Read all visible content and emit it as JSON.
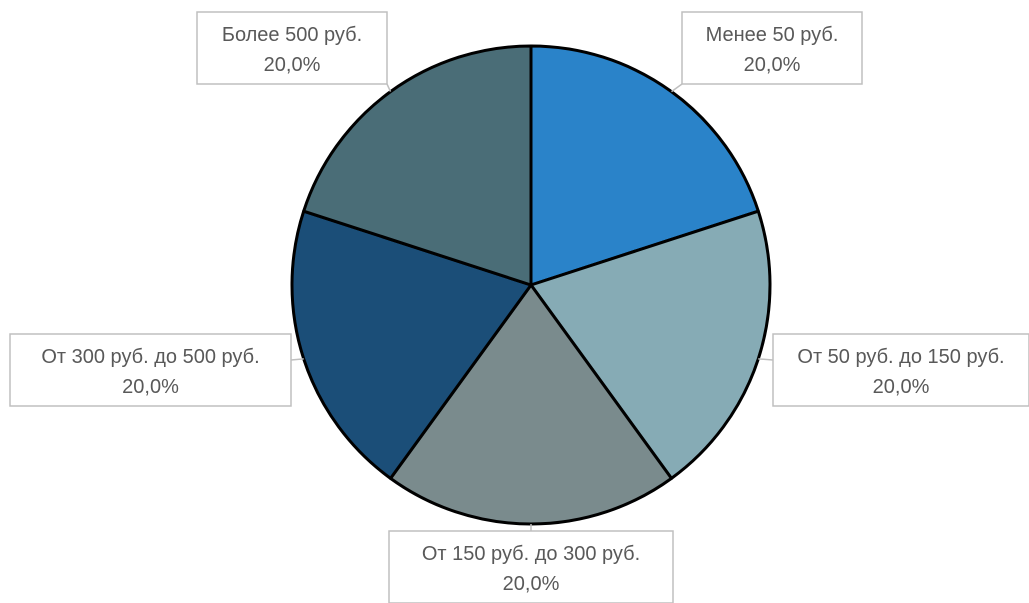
{
  "chart_data": {
    "type": "pie",
    "title": "",
    "slices": [
      {
        "label": "Менее 50 руб.",
        "value": 20.0,
        "value_label": "20,0%",
        "color": "#2a83c9"
      },
      {
        "label": "От 50 руб. до 150 руб.",
        "value": 20.0,
        "value_label": "20,0%",
        "color": "#86abb5"
      },
      {
        "label": "От 150 руб. до 300 руб.",
        "value": 20.0,
        "value_label": "20,0%",
        "color": "#7a8b8d"
      },
      {
        "label": "От 300 руб. до 500 руб.",
        "value": 20.0,
        "value_label": "20,0%",
        "color": "#1b4e78"
      },
      {
        "label": "Более 500 руб.",
        "value": 20.0,
        "value_label": "20,0%",
        "color": "#4a6d77"
      }
    ],
    "start_angle_deg": 0,
    "direction": "clockwise",
    "slice_border_color": "#000000",
    "label_box_border_color": "#bfbfbf",
    "label_text_color": "#595959"
  }
}
